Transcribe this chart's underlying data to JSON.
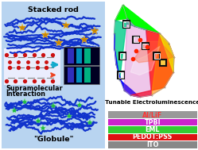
{
  "bg_color": "#ffffff",
  "left_panel_bg": "#b8d4f0",
  "left_panel_border": "#7799bb",
  "stacked_rod_text": "Stacked rod",
  "supramolecular_text1": "Supramolecular",
  "supramolecular_text2": "Interaction",
  "globule_text": "\"Globule\"",
  "blue_line_color": "#1133cc",
  "gold_node_color": "#cc8800",
  "green_node_color": "#22bb44",
  "layers": [
    {
      "label": "Al/LiF",
      "color": "#999999",
      "text_color": "#ff3333"
    },
    {
      "label": "TPBI",
      "color": "#cc22cc",
      "text_color": "#ffffff"
    },
    {
      "label": "EML",
      "color": "#33cc33",
      "text_color": "#ffffff"
    },
    {
      "label": "PEDOT:PSS",
      "color": "#dd1111",
      "text_color": "#ffffff"
    },
    {
      "label": "ITO",
      "color": "#888888",
      "text_color": "#ffffff"
    }
  ],
  "cie_label": "Tunable Electroluminescence"
}
